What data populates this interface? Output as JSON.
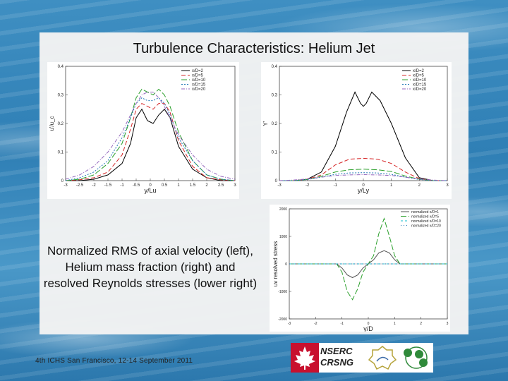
{
  "slide": {
    "title": "Turbulence Characteristics: Helium Jet",
    "caption": "Normalized RMS of axial velocity (left), Helium mass fraction (right) and resolved Reynolds stresses (lower right)",
    "footer": "4th ICHS  San Francisco, 12-14 September 2011",
    "logo_text_1": "NSERC",
    "logo_text_2": "CRSNG"
  },
  "chart_data": [
    {
      "type": "line",
      "name": "left",
      "ylabel": "u'/u_c",
      "xlabel": "y/Lu",
      "xlim": [
        -3,
        3
      ],
      "ylim": [
        0,
        0.4
      ],
      "xticks": [
        "-3",
        "-2.5",
        "-2",
        "-1.5",
        "-1",
        "-0.5",
        "0",
        "0.5",
        "1",
        "1.5",
        "2",
        "2.5",
        "3"
      ],
      "yticks": [
        "0",
        "0.1",
        "0.2",
        "0.3",
        "0.4"
      ],
      "legend_position": "top-right",
      "series": [
        {
          "name": "x/D=2",
          "color": "#000000",
          "dash": "0",
          "x": [
            -3,
            -2.5,
            -2,
            -1.5,
            -1,
            -0.7,
            -0.5,
            -0.3,
            -0.1,
            0.1,
            0.3,
            0.5,
            0.7,
            1,
            1.5,
            2,
            2.5,
            3
          ],
          "y": [
            0.0,
            0.0,
            0.005,
            0.02,
            0.06,
            0.13,
            0.22,
            0.25,
            0.21,
            0.2,
            0.23,
            0.25,
            0.22,
            0.12,
            0.04,
            0.01,
            0.0,
            0.0
          ]
        },
        {
          "name": "x/D=5",
          "color": "#d62728",
          "dash": "6 3",
          "x": [
            -3,
            -2.5,
            -2,
            -1.5,
            -1,
            -0.7,
            -0.5,
            -0.3,
            -0.1,
            0.1,
            0.3,
            0.5,
            0.7,
            1,
            1.5,
            2,
            2.5,
            3
          ],
          "y": [
            0.0,
            0.003,
            0.01,
            0.03,
            0.09,
            0.18,
            0.25,
            0.27,
            0.26,
            0.25,
            0.27,
            0.27,
            0.24,
            0.14,
            0.05,
            0.01,
            0.003,
            0.0
          ]
        },
        {
          "name": "x/D=10",
          "color": "#2ca02c",
          "dash": "8 3",
          "x": [
            -3,
            -2.5,
            -2,
            -1.5,
            -1,
            -0.7,
            -0.5,
            -0.3,
            -0.1,
            0.1,
            0.3,
            0.5,
            0.7,
            1,
            1.5,
            2,
            2.5,
            3
          ],
          "y": [
            0.0,
            0.005,
            0.02,
            0.06,
            0.13,
            0.22,
            0.29,
            0.32,
            0.31,
            0.3,
            0.32,
            0.3,
            0.26,
            0.17,
            0.07,
            0.02,
            0.005,
            0.0
          ]
        },
        {
          "name": "x/D=15",
          "color": "#1f77b4",
          "dash": "2 2",
          "x": [
            -3,
            -2.5,
            -2,
            -1.5,
            -1,
            -0.7,
            -0.5,
            -0.3,
            -0.1,
            0.1,
            0.3,
            0.5,
            0.7,
            1,
            1.5,
            2,
            2.5,
            3
          ],
          "y": [
            0.0,
            0.01,
            0.03,
            0.07,
            0.15,
            0.22,
            0.27,
            0.29,
            0.28,
            0.28,
            0.29,
            0.27,
            0.23,
            0.15,
            0.07,
            0.02,
            0.005,
            0.0
          ]
        },
        {
          "name": "x/D=20",
          "color": "#9467bd",
          "dash": "5 2 1 2",
          "x": [
            -3,
            -2.5,
            -2,
            -1.5,
            -1,
            -0.7,
            -0.5,
            -0.3,
            -0.1,
            0.1,
            0.3,
            0.5,
            0.7,
            1,
            1.5,
            2,
            2.5,
            3
          ],
          "y": [
            0.005,
            0.02,
            0.05,
            0.1,
            0.17,
            0.23,
            0.27,
            0.3,
            0.31,
            0.31,
            0.29,
            0.26,
            0.22,
            0.16,
            0.09,
            0.04,
            0.015,
            0.005
          ]
        }
      ]
    },
    {
      "type": "line",
      "name": "right",
      "ylabel": "Y'",
      "xlabel": "y/Ly",
      "xlim": [
        -3,
        3
      ],
      "ylim": [
        0,
        0.4
      ],
      "xticks": [
        "-3",
        "-2",
        "-1",
        "0",
        "1",
        "2",
        "3"
      ],
      "yticks": [
        "0",
        "0.1",
        "0.2",
        "0.3",
        "0.4"
      ],
      "legend_position": "top-right",
      "series": [
        {
          "name": "x/D=2",
          "color": "#000000",
          "dash": "0",
          "x": [
            -3,
            -2.5,
            -2,
            -1.5,
            -1,
            -0.6,
            -0.3,
            -0.1,
            0,
            0.1,
            0.3,
            0.6,
            1,
            1.5,
            2,
            2.5,
            3
          ],
          "y": [
            0.0,
            0.0,
            0.005,
            0.03,
            0.12,
            0.24,
            0.31,
            0.27,
            0.26,
            0.27,
            0.31,
            0.28,
            0.2,
            0.08,
            0.01,
            0.0,
            0.0
          ]
        },
        {
          "name": "x/D=5",
          "color": "#d62728",
          "dash": "6 3",
          "x": [
            -3,
            -2.5,
            -2,
            -1.5,
            -1,
            -0.5,
            0,
            0.5,
            1,
            1.5,
            2,
            2.5,
            3
          ],
          "y": [
            0.0,
            0.0,
            0.005,
            0.02,
            0.055,
            0.075,
            0.078,
            0.075,
            0.06,
            0.03,
            0.007,
            0.0,
            0.0
          ]
        },
        {
          "name": "x/D=10",
          "color": "#2ca02c",
          "dash": "8 3",
          "x": [
            -3,
            -2.5,
            -2,
            -1.5,
            -1,
            -0.5,
            0,
            0.5,
            1,
            1.5,
            2,
            2.5,
            3
          ],
          "y": [
            0.0,
            0.0,
            0.004,
            0.015,
            0.03,
            0.038,
            0.04,
            0.038,
            0.032,
            0.016,
            0.005,
            0.0,
            0.0
          ]
        },
        {
          "name": "x/D=15",
          "color": "#1f77b4",
          "dash": "2 2",
          "x": [
            -3,
            -2.5,
            -2,
            -1.5,
            -1,
            -0.5,
            0,
            0.5,
            1,
            1.5,
            2,
            2.5,
            3
          ],
          "y": [
            0.0,
            0.0,
            0.004,
            0.012,
            0.022,
            0.027,
            0.028,
            0.027,
            0.022,
            0.012,
            0.004,
            0.0,
            0.0
          ]
        },
        {
          "name": "x/D=20",
          "color": "#9467bd",
          "dash": "5 2 1 2",
          "x": [
            -3,
            -2.5,
            -2,
            -1.5,
            -1,
            -0.5,
            0,
            0.5,
            1,
            1.5,
            2,
            2.5,
            3
          ],
          "y": [
            0.0,
            0.002,
            0.006,
            0.012,
            0.018,
            0.02,
            0.021,
            0.02,
            0.018,
            0.012,
            0.006,
            0.002,
            0.0
          ]
        }
      ]
    },
    {
      "type": "line",
      "name": "lower-right",
      "ylabel": "uv resolved stress",
      "xlabel": "y/D",
      "xlim": [
        -3,
        3
      ],
      "ylim": [
        -2000,
        2000
      ],
      "xticks": [
        "-3",
        "-2",
        "-1",
        "0",
        "1",
        "2",
        "3"
      ],
      "yticks": [
        "-2000",
        "-1000",
        "0",
        "1000",
        "2000"
      ],
      "legend_position": "top-right",
      "series": [
        {
          "name": "normalized x/D=1",
          "color": "#555555",
          "dash": "0",
          "x": [
            -3,
            -2,
            -1.2,
            -1,
            -0.8,
            -0.6,
            -0.4,
            -0.2,
            0,
            0.2,
            0.4,
            0.6,
            0.8,
            1,
            1.2,
            2,
            3
          ],
          "y": [
            0,
            0,
            0,
            -150,
            -400,
            -500,
            -400,
            -150,
            0,
            150,
            400,
            480,
            400,
            150,
            0,
            0,
            0
          ]
        },
        {
          "name": "normalized x/D=5",
          "color": "#2ca02c",
          "dash": "8 3",
          "x": [
            -3,
            -2,
            -1.2,
            -1,
            -0.8,
            -0.6,
            -0.4,
            -0.2,
            0,
            0.2,
            0.4,
            0.6,
            0.8,
            1,
            1.2,
            2,
            3
          ],
          "y": [
            0,
            0,
            0,
            -300,
            -1000,
            -1300,
            -900,
            -300,
            0,
            300,
            1100,
            1650,
            1000,
            300,
            0,
            0,
            0
          ]
        },
        {
          "name": "normalized x/D=10",
          "color": "#17becf",
          "dash": "3 3",
          "x": [
            -3,
            -2,
            -1,
            0,
            1,
            2,
            3
          ],
          "y": [
            0,
            0,
            0,
            0,
            0,
            0,
            0
          ]
        },
        {
          "name": "normalized x/D=20",
          "color": "#1f77b4",
          "dash": "1 3",
          "x": [
            -3,
            -2,
            -1,
            0,
            1,
            2,
            3
          ],
          "y": [
            0,
            0,
            0,
            0,
            0,
            0,
            0
          ]
        }
      ]
    }
  ]
}
